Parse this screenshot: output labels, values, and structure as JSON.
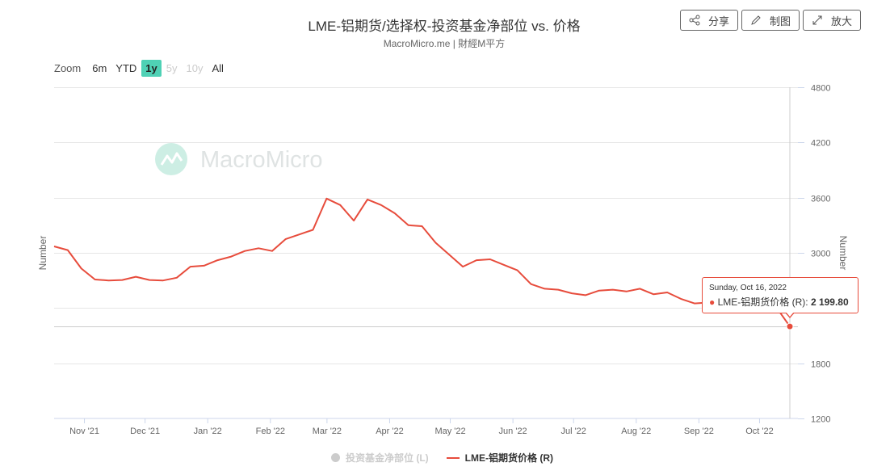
{
  "title": "LME-铝期货/选择权-投资基金净部位 vs. 价格",
  "subtitle": "MacroMicro.me | 財經M平方",
  "toolbar": {
    "share_label": "分享",
    "draw_label": "制图",
    "expand_label": "放大"
  },
  "zoom": {
    "label": "Zoom",
    "options": [
      {
        "label": "6m",
        "state": "normal"
      },
      {
        "label": "YTD",
        "state": "normal"
      },
      {
        "label": "1y",
        "state": "active"
      },
      {
        "label": "5y",
        "state": "disabled"
      },
      {
        "label": "10y",
        "state": "disabled"
      },
      {
        "label": "All",
        "state": "normal"
      }
    ]
  },
  "watermark": "MacroMicro",
  "tooltip": {
    "date": "Sunday, Oct 16, 2022",
    "series_label": "LME-铝期货价格 (R): ",
    "value_label": "2 199.80"
  },
  "colors": {
    "price_line": "#e74c3c",
    "fund_series": "#cccccc",
    "active_zoom": "#4fd1b5"
  },
  "chart_data": {
    "type": "line",
    "x_tick_labels": [
      "Nov '21",
      "Dec '21",
      "Jan '22",
      "Feb '22",
      "Mar '22",
      "Apr '22",
      "May '22",
      "Jun '22",
      "Jul '22",
      "Aug '22",
      "Sep '22",
      "Oct '22"
    ],
    "y_left_label": "Number",
    "y_right_label": "Number",
    "y_right_ticks": [
      1200,
      1800,
      2400,
      3000,
      3600,
      4200,
      4800
    ],
    "y_right_range": [
      1200,
      4800
    ],
    "grid": true,
    "legend_position": "bottom",
    "series": [
      {
        "name": "投资基金净部位 (L)",
        "visible": false,
        "values": []
      },
      {
        "name": "LME-铝期货价格 (R)",
        "visible": true,
        "frequency": "weekly",
        "start": "2021-10-17",
        "end": "2022-10-16",
        "values": [
          3070,
          3030,
          2830,
          2710,
          2700,
          2705,
          2740,
          2705,
          2700,
          2730,
          2850,
          2860,
          2920,
          2960,
          3020,
          3050,
          3020,
          3150,
          3200,
          3250,
          3590,
          3520,
          3350,
          3580,
          3520,
          3430,
          3300,
          3290,
          3110,
          2980,
          2850,
          2920,
          2930,
          2870,
          2810,
          2660,
          2610,
          2600,
          2560,
          2540,
          2590,
          2600,
          2580,
          2610,
          2550,
          2570,
          2500,
          2450,
          2460,
          2420,
          2400,
          2370,
          2440,
          2410,
          2199.8
        ]
      }
    ]
  }
}
